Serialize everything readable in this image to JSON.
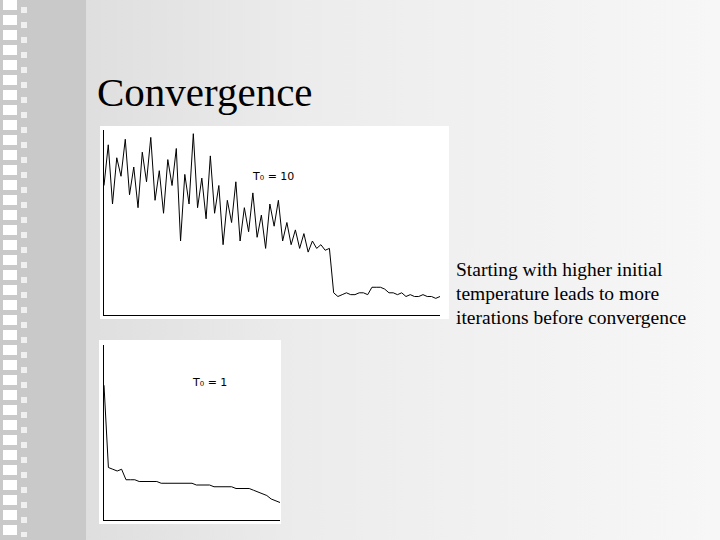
{
  "slide": {
    "title": "Convergence",
    "text": "Starting with higher initial temperature leads to more iterations before convergence"
  },
  "chart_data": [
    {
      "type": "line",
      "annotations": [
        "T₀ = 10"
      ],
      "color": "#000000",
      "tick_labels": false,
      "grid": false,
      "xlim": [
        0,
        79
      ],
      "ylim": [
        0,
        100
      ],
      "x": [
        0,
        1,
        2,
        3,
        4,
        5,
        6,
        7,
        8,
        9,
        10,
        11,
        12,
        13,
        14,
        15,
        16,
        17,
        18,
        19,
        20,
        21,
        22,
        23,
        24,
        25,
        26,
        27,
        28,
        29,
        30,
        31,
        32,
        33,
        34,
        35,
        36,
        37,
        38,
        39,
        40,
        41,
        42,
        43,
        44,
        45,
        46,
        47,
        48,
        49,
        50,
        51,
        52,
        53,
        54,
        55,
        56,
        57,
        58,
        59,
        60,
        61,
        62,
        63,
        64,
        65,
        66,
        67,
        68,
        69,
        70,
        71,
        72,
        73,
        74,
        75,
        76,
        77,
        78,
        79
      ],
      "values": [
        70,
        92,
        60,
        85,
        75,
        95,
        65,
        80,
        58,
        88,
        72,
        96,
        62,
        78,
        55,
        84,
        70,
        90,
        40,
        76,
        60,
        98,
        58,
        74,
        52,
        86,
        55,
        70,
        38,
        62,
        50,
        72,
        40,
        58,
        45,
        66,
        42,
        54,
        36,
        60,
        48,
        62,
        40,
        50,
        38,
        46,
        36,
        44,
        34,
        40,
        36,
        38,
        35,
        36,
        12,
        10,
        11,
        12,
        11,
        11,
        12,
        12,
        11,
        15,
        15,
        15,
        14,
        12,
        12,
        11,
        12,
        10,
        11,
        10,
        10,
        11,
        10,
        10,
        9,
        10
      ]
    },
    {
      "type": "line",
      "annotations": [
        "T₀ = 1"
      ],
      "color": "#000000",
      "tick_labels": false,
      "grid": false,
      "xlim": [
        0,
        40
      ],
      "ylim": [
        0,
        100
      ],
      "x": [
        0,
        1,
        2,
        3,
        4,
        5,
        6,
        7,
        8,
        9,
        10,
        11,
        12,
        13,
        14,
        15,
        16,
        17,
        18,
        19,
        20,
        21,
        22,
        23,
        24,
        25,
        26,
        27,
        28,
        29,
        30,
        31,
        32,
        33,
        34,
        35,
        36,
        37,
        38,
        39,
        40
      ],
      "values": [
        77,
        30,
        29,
        28,
        29,
        23,
        23,
        23,
        22,
        22,
        22,
        22,
        22,
        21,
        21,
        21,
        21,
        21,
        21,
        21,
        21,
        20,
        20,
        20,
        20,
        19,
        19,
        19,
        19,
        19,
        18,
        18,
        18,
        18,
        17,
        16,
        15,
        14,
        12,
        11,
        10
      ]
    }
  ]
}
